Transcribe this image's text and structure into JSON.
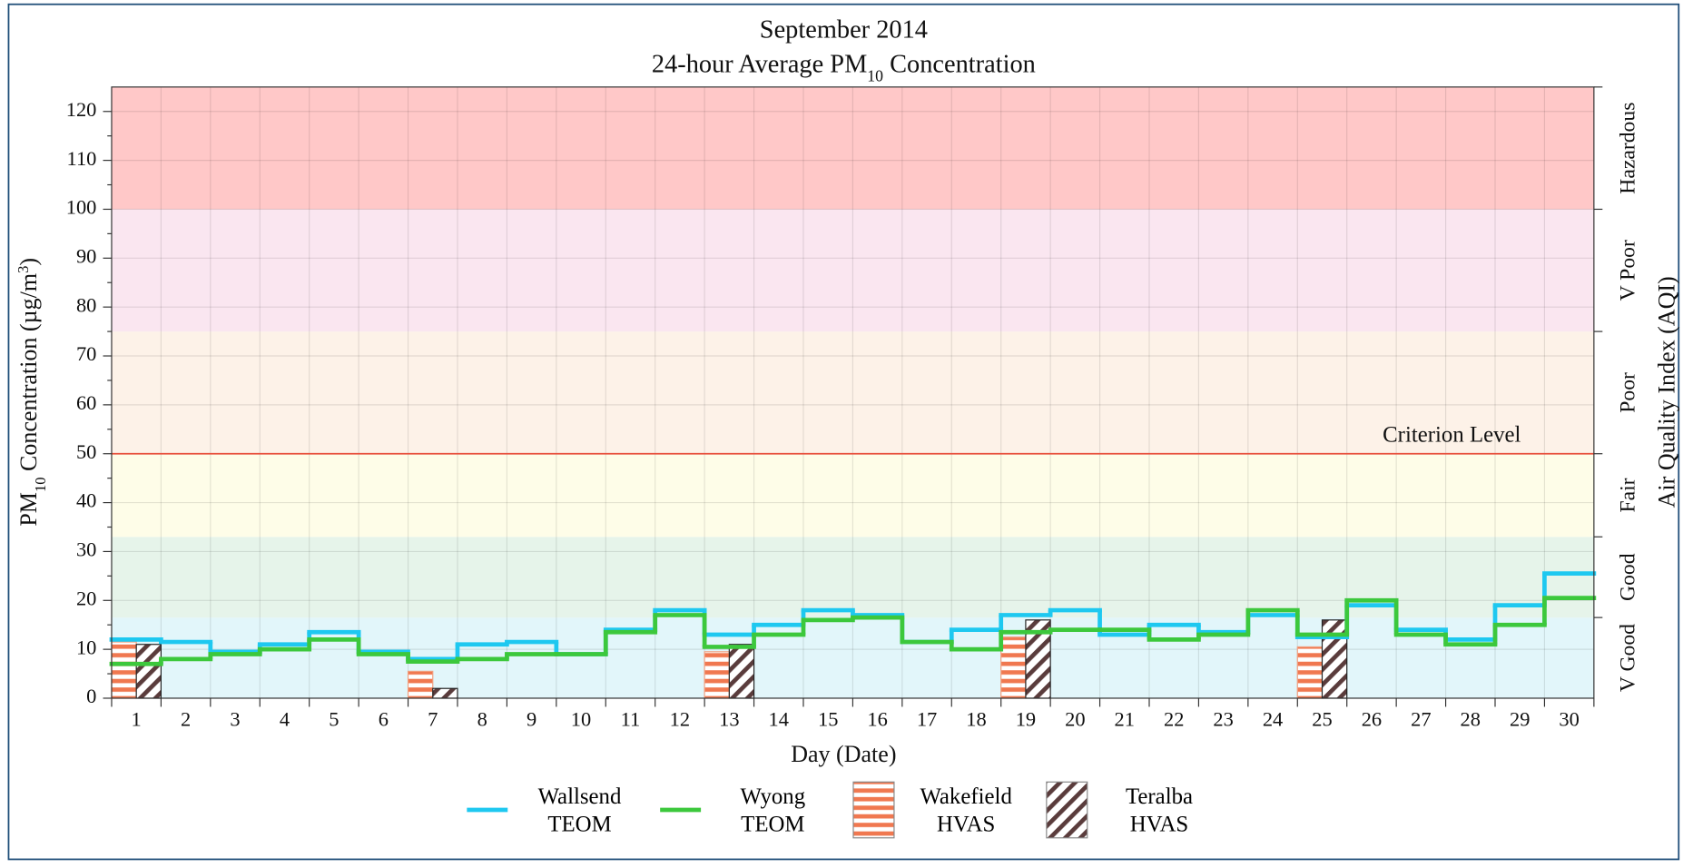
{
  "chart_data": {
    "type": "step",
    "title": "September 2014",
    "subtitle": [
      "24-hour Average PM",
      "10",
      " Concentration"
    ],
    "xlabel": "Day (Date)",
    "ylabel": [
      "PM",
      "10",
      " Concentration (µg/m",
      "3",
      ")"
    ],
    "y2label": "Air Quality Index (AQI)",
    "categories": [
      "1",
      "2",
      "3",
      "4",
      "5",
      "6",
      "7",
      "8",
      "9",
      "10",
      "11",
      "12",
      "13",
      "14",
      "15",
      "16",
      "17",
      "18",
      "19",
      "20",
      "21",
      "22",
      "23",
      "24",
      "25",
      "26",
      "27",
      "28",
      "29",
      "30"
    ],
    "xlim": [
      0.5,
      30.5
    ],
    "ylim": [
      0,
      125
    ],
    "yticks": [
      0,
      10,
      20,
      30,
      40,
      50,
      60,
      70,
      80,
      90,
      100,
      110,
      120
    ],
    "grid": true,
    "series": [
      {
        "name": "Wallsend TEOM",
        "kind": "step",
        "color": "#1ec8f0",
        "values": [
          12,
          11.5,
          9.5,
          11,
          13.5,
          9.5,
          8,
          11,
          11.5,
          9,
          14,
          18,
          13,
          15,
          18,
          17,
          11.5,
          14,
          17,
          18,
          13,
          15,
          13.5,
          17,
          12.5,
          19,
          14,
          12,
          19,
          25.5
        ]
      },
      {
        "name": "Wyong TEOM",
        "kind": "step",
        "color": "#3cc83c",
        "values": [
          7,
          8,
          9,
          10,
          12,
          9,
          7.5,
          8,
          9,
          9,
          13.5,
          17,
          10.5,
          13,
          16,
          16.5,
          11.5,
          10,
          13.5,
          14,
          14,
          12,
          13,
          18,
          13,
          20,
          13,
          11,
          15,
          20.5
        ]
      },
      {
        "name": "Wakefield HVAS",
        "kind": "bar",
        "color": "#f07850",
        "values": [
          11.5,
          null,
          null,
          null,
          null,
          null,
          5.5,
          null,
          null,
          null,
          null,
          null,
          9.5,
          null,
          null,
          null,
          null,
          null,
          12.5,
          null,
          null,
          null,
          null,
          null,
          10.5,
          null,
          null,
          null,
          null,
          null
        ]
      },
      {
        "name": "Teralba HVAS",
        "kind": "bar",
        "color": "#5a3c3c",
        "values": [
          11,
          null,
          null,
          null,
          null,
          null,
          2,
          null,
          null,
          null,
          null,
          null,
          11,
          null,
          null,
          null,
          null,
          null,
          16,
          null,
          null,
          null,
          null,
          null,
          16,
          null,
          null,
          null,
          null,
          null
        ]
      }
    ],
    "aqi_bands": [
      {
        "label": "V Good",
        "from": 0,
        "to": 16.5,
        "color": "#e2f6fa"
      },
      {
        "label": "Good",
        "from": 16.5,
        "to": 33,
        "color": "#e6f4ea"
      },
      {
        "label": "Fair",
        "from": 33,
        "to": 50,
        "color": "#fefde8"
      },
      {
        "label": "Poor",
        "from": 50,
        "to": 75,
        "color": "#fdf2e8"
      },
      {
        "label": "V Poor",
        "from": 75,
        "to": 100,
        "color": "#fae6f0"
      },
      {
        "label": "Hazardous",
        "from": 100,
        "to": 125,
        "color": "#ffc8c8"
      }
    ],
    "criterion": {
      "label": "Criterion Level",
      "value": 50,
      "color": "#e8503c"
    }
  }
}
